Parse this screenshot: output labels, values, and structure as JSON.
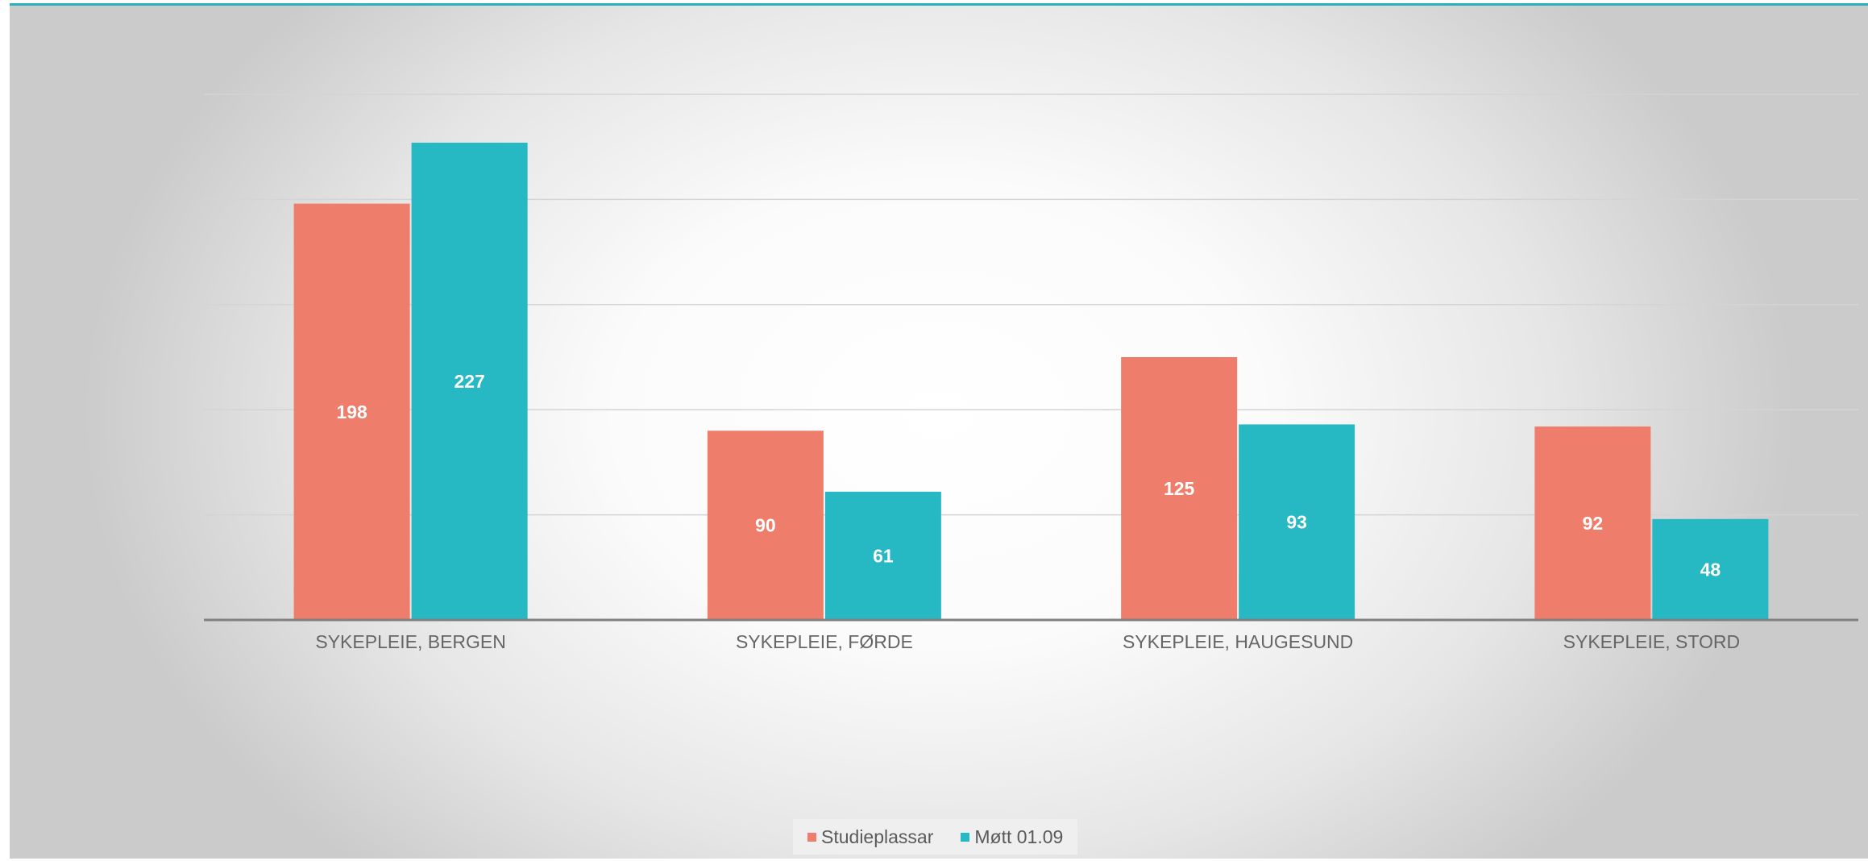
{
  "colors": {
    "series1": "#ee7e6b",
    "series2": "#26b8c3",
    "axis": "#808080",
    "grid": "#d4d4d4"
  },
  "chart_data": {
    "type": "bar",
    "categories": [
      "SYKEPLEIE, BERGEN",
      "SYKEPLEIE, FØRDE",
      "SYKEPLEIE, HAUGESUND",
      "SYKEPLEIE, STORD"
    ],
    "series": [
      {
        "name": "Studieplassar",
        "values": [
          198,
          90,
          125,
          92
        ]
      },
      {
        "name": "Møtt 01.09",
        "values": [
          227,
          61,
          93,
          48
        ]
      }
    ],
    "ylim": [
      0,
      250
    ],
    "gridlines": [
      50,
      100,
      150,
      200,
      250
    ],
    "grid": true,
    "legend": "bottom-center",
    "data_labels": true
  }
}
